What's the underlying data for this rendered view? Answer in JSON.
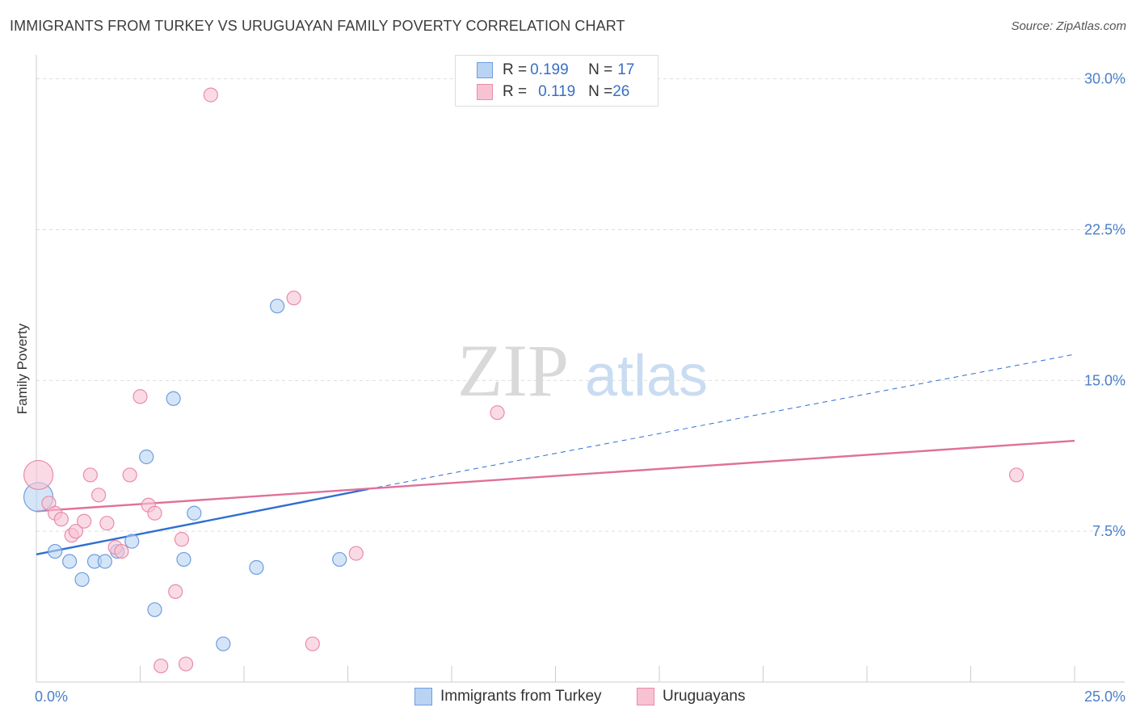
{
  "title": "IMMIGRANTS FROM TURKEY VS URUGUAYAN FAMILY POVERTY CORRELATION CHART",
  "source": "Source: ZipAtlas.com",
  "watermark": {
    "zip": "ZIP",
    "atlas": "atlas"
  },
  "colors": {
    "blue_fill": "#b9d3f3",
    "blue_stroke": "#6d9ee0",
    "blue_line": "#2f6fd0",
    "pink_fill": "#f7c3d3",
    "pink_stroke": "#ea8ba8",
    "pink_line": "#e0709a",
    "axis_text": "#4a7fc8",
    "grid": "#dddddd"
  },
  "legend": {
    "rows": [
      {
        "r_label": "R = ",
        "r_value": "0.199",
        "n_label": "N = ",
        "n_value": "17"
      },
      {
        "r_label": "R = ",
        "r_value": "0.119",
        "n_label": "N = ",
        "n_value": "26"
      }
    ]
  },
  "bottom_legend": [
    "Immigrants from Turkey",
    "Uruguayans"
  ],
  "chart_data": {
    "type": "scatter",
    "title": "IMMIGRANTS FROM TURKEY VS URUGUAYAN FAMILY POVERTY CORRELATION CHART",
    "xlabel": "",
    "ylabel": "Family Poverty",
    "xlim": [
      0,
      25
    ],
    "ylim": [
      0,
      30.75
    ],
    "x_tick_labels": [
      {
        "v": 0,
        "label": "0.0%"
      },
      {
        "v": 25,
        "label": "25.0%"
      }
    ],
    "y_tick_labels": [
      {
        "v": 7.5,
        "label": "7.5%"
      },
      {
        "v": 15,
        "label": "15.0%"
      },
      {
        "v": 22.5,
        "label": "22.5%"
      },
      {
        "v": 30,
        "label": "30.0%"
      }
    ],
    "series": [
      {
        "name": "Immigrants from Turkey",
        "color": "blue",
        "points": [
          {
            "x": 0.05,
            "y": 9.2,
            "big": true
          },
          {
            "x": 0.45,
            "y": 6.5
          },
          {
            "x": 0.8,
            "y": 6.0
          },
          {
            "x": 1.1,
            "y": 5.1
          },
          {
            "x": 1.4,
            "y": 6.0
          },
          {
            "x": 1.65,
            "y": 6.0
          },
          {
            "x": 1.95,
            "y": 6.5
          },
          {
            "x": 2.3,
            "y": 7.0
          },
          {
            "x": 2.65,
            "y": 11.2
          },
          {
            "x": 2.85,
            "y": 3.6
          },
          {
            "x": 3.3,
            "y": 14.1
          },
          {
            "x": 3.55,
            "y": 6.1
          },
          {
            "x": 3.8,
            "y": 8.4
          },
          {
            "x": 4.5,
            "y": 1.9
          },
          {
            "x": 5.3,
            "y": 5.7
          },
          {
            "x": 5.8,
            "y": 18.7
          },
          {
            "x": 7.3,
            "y": 6.1
          }
        ],
        "trend": {
          "x0": 0,
          "y0": 6.35,
          "x1": 8.0,
          "y1": 9.6,
          "dash_x1": 25,
          "dash_y1": 16.3
        }
      },
      {
        "name": "Uruguayans",
        "color": "pink",
        "points": [
          {
            "x": 0.05,
            "y": 10.3,
            "big": true
          },
          {
            "x": 0.3,
            "y": 8.9
          },
          {
            "x": 0.45,
            "y": 8.4
          },
          {
            "x": 0.6,
            "y": 8.1
          },
          {
            "x": 0.85,
            "y": 7.3
          },
          {
            "x": 0.95,
            "y": 7.5
          },
          {
            "x": 1.15,
            "y": 8.0
          },
          {
            "x": 1.3,
            "y": 10.3
          },
          {
            "x": 1.5,
            "y": 9.3
          },
          {
            "x": 1.7,
            "y": 7.9
          },
          {
            "x": 1.9,
            "y": 6.7
          },
          {
            "x": 2.05,
            "y": 6.5
          },
          {
            "x": 2.25,
            "y": 10.3
          },
          {
            "x": 2.5,
            "y": 14.2
          },
          {
            "x": 2.7,
            "y": 8.8
          },
          {
            "x": 2.85,
            "y": 8.4
          },
          {
            "x": 3.0,
            "y": 0.8
          },
          {
            "x": 3.35,
            "y": 4.5
          },
          {
            "x": 3.5,
            "y": 7.1
          },
          {
            "x": 3.6,
            "y": 0.9
          },
          {
            "x": 4.2,
            "y": 29.2
          },
          {
            "x": 6.2,
            "y": 19.1
          },
          {
            "x": 6.65,
            "y": 1.9
          },
          {
            "x": 7.7,
            "y": 6.4
          },
          {
            "x": 11.1,
            "y": 13.4
          },
          {
            "x": 23.6,
            "y": 10.3
          }
        ],
        "trend": {
          "x0": 0,
          "y0": 8.5,
          "x1": 25,
          "y1": 12.0
        }
      }
    ]
  }
}
